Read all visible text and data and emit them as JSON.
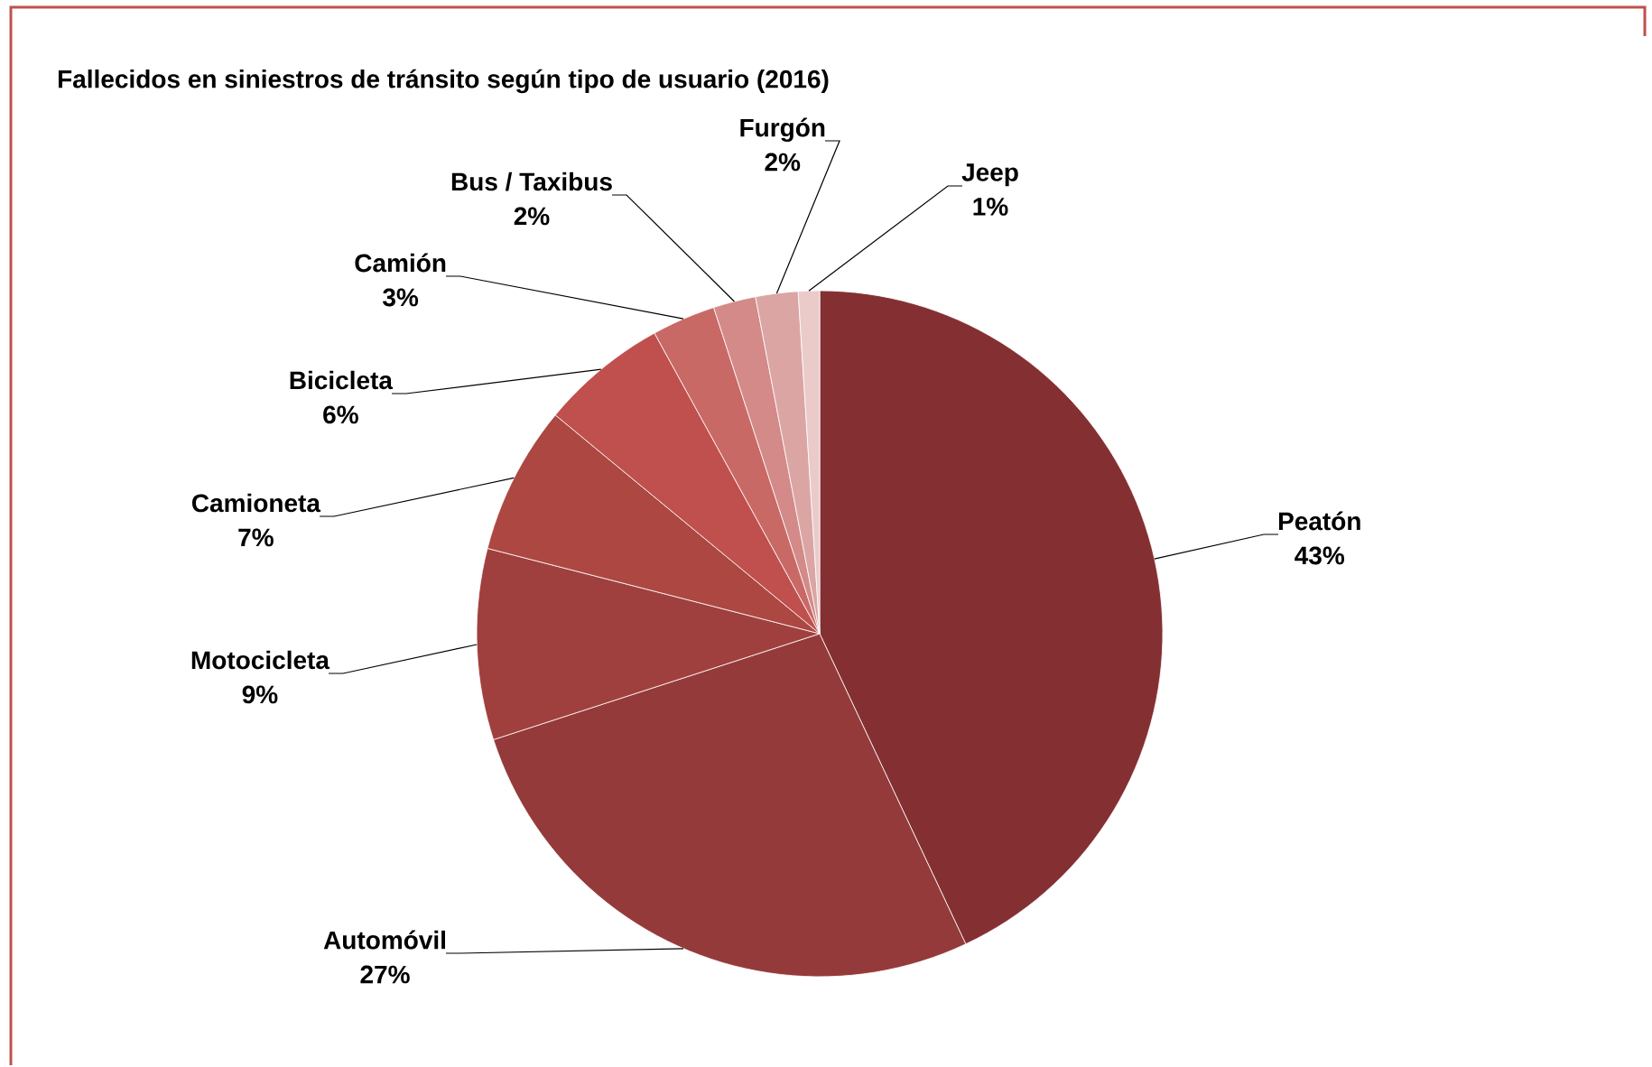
{
  "chart_data": {
    "type": "pie",
    "title": "Fallecidos en siniestros de tránsito según tipo de usuario (2016)",
    "categories": [
      "Peatón",
      "Automóvil",
      "Motocicleta",
      "Camioneta",
      "Bicicleta",
      "Camión",
      "Bus / Taxibus",
      "Furgón",
      "Jeep"
    ],
    "values": [
      43,
      27,
      9,
      7,
      6,
      3,
      2,
      2,
      1
    ],
    "value_labels": [
      "43%",
      "27%",
      "9%",
      "7%",
      "6%",
      "3%",
      "2%",
      "2%",
      "1%"
    ],
    "colors": [
      "#843033",
      "#953a3a",
      "#a0403e",
      "#ad4742",
      "#c0504d",
      "#c96966",
      "#d38a88",
      "#dba5a4",
      "#ebcaca"
    ]
  }
}
